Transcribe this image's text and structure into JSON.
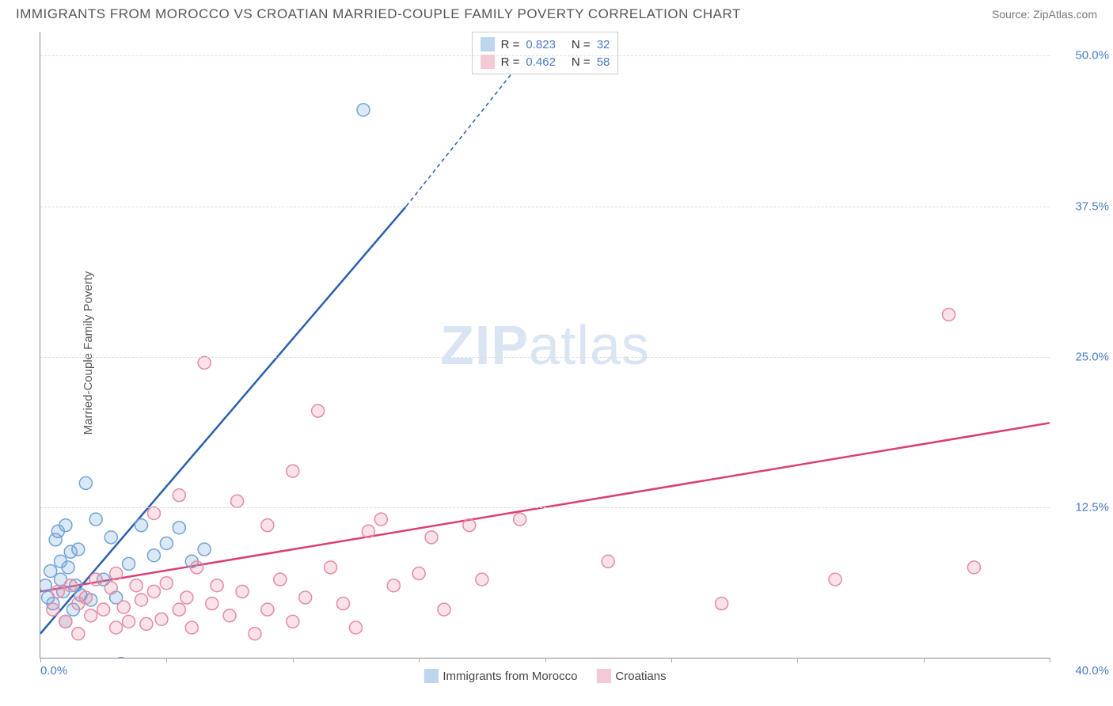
{
  "header": {
    "title": "IMMIGRANTS FROM MOROCCO VS CROATIAN MARRIED-COUPLE FAMILY POVERTY CORRELATION CHART",
    "source": "Source: ZipAtlas.com"
  },
  "watermark": {
    "zip": "ZIP",
    "atlas": "atlas"
  },
  "chart": {
    "type": "scatter",
    "y_label": "Married-Couple Family Poverty",
    "xlim": [
      0,
      40
    ],
    "ylim": [
      0,
      52
    ],
    "x_ticks": [
      0,
      5,
      10,
      15,
      20,
      25,
      30,
      35,
      40
    ],
    "x_tick_labels": {
      "min": "0.0%",
      "max": "40.0%"
    },
    "y_gridlines": [
      12.5,
      25.0,
      37.5,
      50.0
    ],
    "y_tick_labels": [
      "12.5%",
      "25.0%",
      "37.5%",
      "50.0%"
    ],
    "background_color": "#ffffff",
    "grid_color": "#dddddd",
    "axis_color": "#888888",
    "tick_label_color": "#4a7bc8",
    "marker_radius": 8,
    "marker_fill_opacity": 0.25,
    "marker_stroke_width": 1.5,
    "series": [
      {
        "name": "Immigrants from Morocco",
        "color": "#6fa3d8",
        "line_color": "#2b5fae",
        "R": "0.823",
        "N": "32",
        "trend": {
          "x1": 0,
          "y1": 2.0,
          "x2": 14.5,
          "y2": 37.5,
          "dash_after_x": 14.5,
          "dash_to_x": 20,
          "dash_to_y": 52
        },
        "points": [
          [
            0.2,
            6.0
          ],
          [
            0.3,
            5.0
          ],
          [
            0.4,
            7.2
          ],
          [
            0.5,
            4.5
          ],
          [
            0.6,
            9.8
          ],
          [
            0.7,
            10.5
          ],
          [
            0.8,
            6.5
          ],
          [
            0.8,
            8.0
          ],
          [
            0.9,
            5.5
          ],
          [
            1.0,
            11.0
          ],
          [
            1.0,
            3.0
          ],
          [
            1.1,
            7.5
          ],
          [
            1.2,
            8.8
          ],
          [
            1.3,
            4.0
          ],
          [
            1.4,
            6.0
          ],
          [
            1.5,
            9.0
          ],
          [
            1.6,
            5.2
          ],
          [
            1.8,
            14.5
          ],
          [
            2.0,
            4.8
          ],
          [
            2.2,
            11.5
          ],
          [
            2.5,
            6.5
          ],
          [
            2.8,
            10.0
          ],
          [
            3.0,
            5.0
          ],
          [
            3.2,
            -0.5
          ],
          [
            3.5,
            7.8
          ],
          [
            4.0,
            11.0
          ],
          [
            4.5,
            8.5
          ],
          [
            5.0,
            9.5
          ],
          [
            5.5,
            10.8
          ],
          [
            6.0,
            8.0
          ],
          [
            6.5,
            9.0
          ],
          [
            12.8,
            45.5
          ]
        ]
      },
      {
        "name": "Croatians",
        "color": "#e68aa5",
        "line_color": "#db3e74",
        "R": "0.462",
        "N": "58",
        "trend": {
          "x1": 0,
          "y1": 5.5,
          "x2": 40,
          "y2": 19.5
        },
        "points": [
          [
            0.5,
            4.0
          ],
          [
            0.7,
            5.5
          ],
          [
            1.0,
            3.0
          ],
          [
            1.2,
            6.0
          ],
          [
            1.5,
            4.5
          ],
          [
            1.5,
            2.0
          ],
          [
            1.8,
            5.0
          ],
          [
            2.0,
            3.5
          ],
          [
            2.2,
            6.5
          ],
          [
            2.5,
            4.0
          ],
          [
            2.8,
            5.8
          ],
          [
            3.0,
            2.5
          ],
          [
            3.0,
            7.0
          ],
          [
            3.3,
            4.2
          ],
          [
            3.5,
            3.0
          ],
          [
            3.8,
            6.0
          ],
          [
            4.0,
            4.8
          ],
          [
            4.2,
            2.8
          ],
          [
            4.5,
            5.5
          ],
          [
            4.5,
            12.0
          ],
          [
            4.8,
            3.2
          ],
          [
            5.0,
            6.2
          ],
          [
            5.5,
            4.0
          ],
          [
            5.5,
            13.5
          ],
          [
            5.8,
            5.0
          ],
          [
            6.0,
            2.5
          ],
          [
            6.2,
            7.5
          ],
          [
            6.5,
            24.5
          ],
          [
            6.8,
            4.5
          ],
          [
            7.0,
            6.0
          ],
          [
            7.5,
            3.5
          ],
          [
            7.8,
            13.0
          ],
          [
            8.0,
            5.5
          ],
          [
            8.5,
            2.0
          ],
          [
            9.0,
            11.0
          ],
          [
            9.0,
            4.0
          ],
          [
            9.5,
            6.5
          ],
          [
            10.0,
            15.5
          ],
          [
            10.0,
            3.0
          ],
          [
            10.5,
            5.0
          ],
          [
            11.0,
            20.5
          ],
          [
            11.5,
            7.5
          ],
          [
            12.0,
            4.5
          ],
          [
            12.5,
            2.5
          ],
          [
            13.0,
            10.5
          ],
          [
            13.5,
            11.5
          ],
          [
            14.0,
            6.0
          ],
          [
            15.0,
            7.0
          ],
          [
            15.5,
            10.0
          ],
          [
            16.0,
            4.0
          ],
          [
            17.0,
            11.0
          ],
          [
            17.5,
            6.5
          ],
          [
            19.0,
            11.5
          ],
          [
            22.5,
            8.0
          ],
          [
            27.0,
            4.5
          ],
          [
            31.5,
            6.5
          ],
          [
            36.0,
            28.5
          ],
          [
            37.0,
            7.5
          ]
        ]
      }
    ]
  },
  "legend_top": {
    "r_label": "R =",
    "n_label": "N ="
  },
  "legend_bottom": {
    "items": [
      "Immigrants from Morocco",
      "Croatians"
    ]
  }
}
